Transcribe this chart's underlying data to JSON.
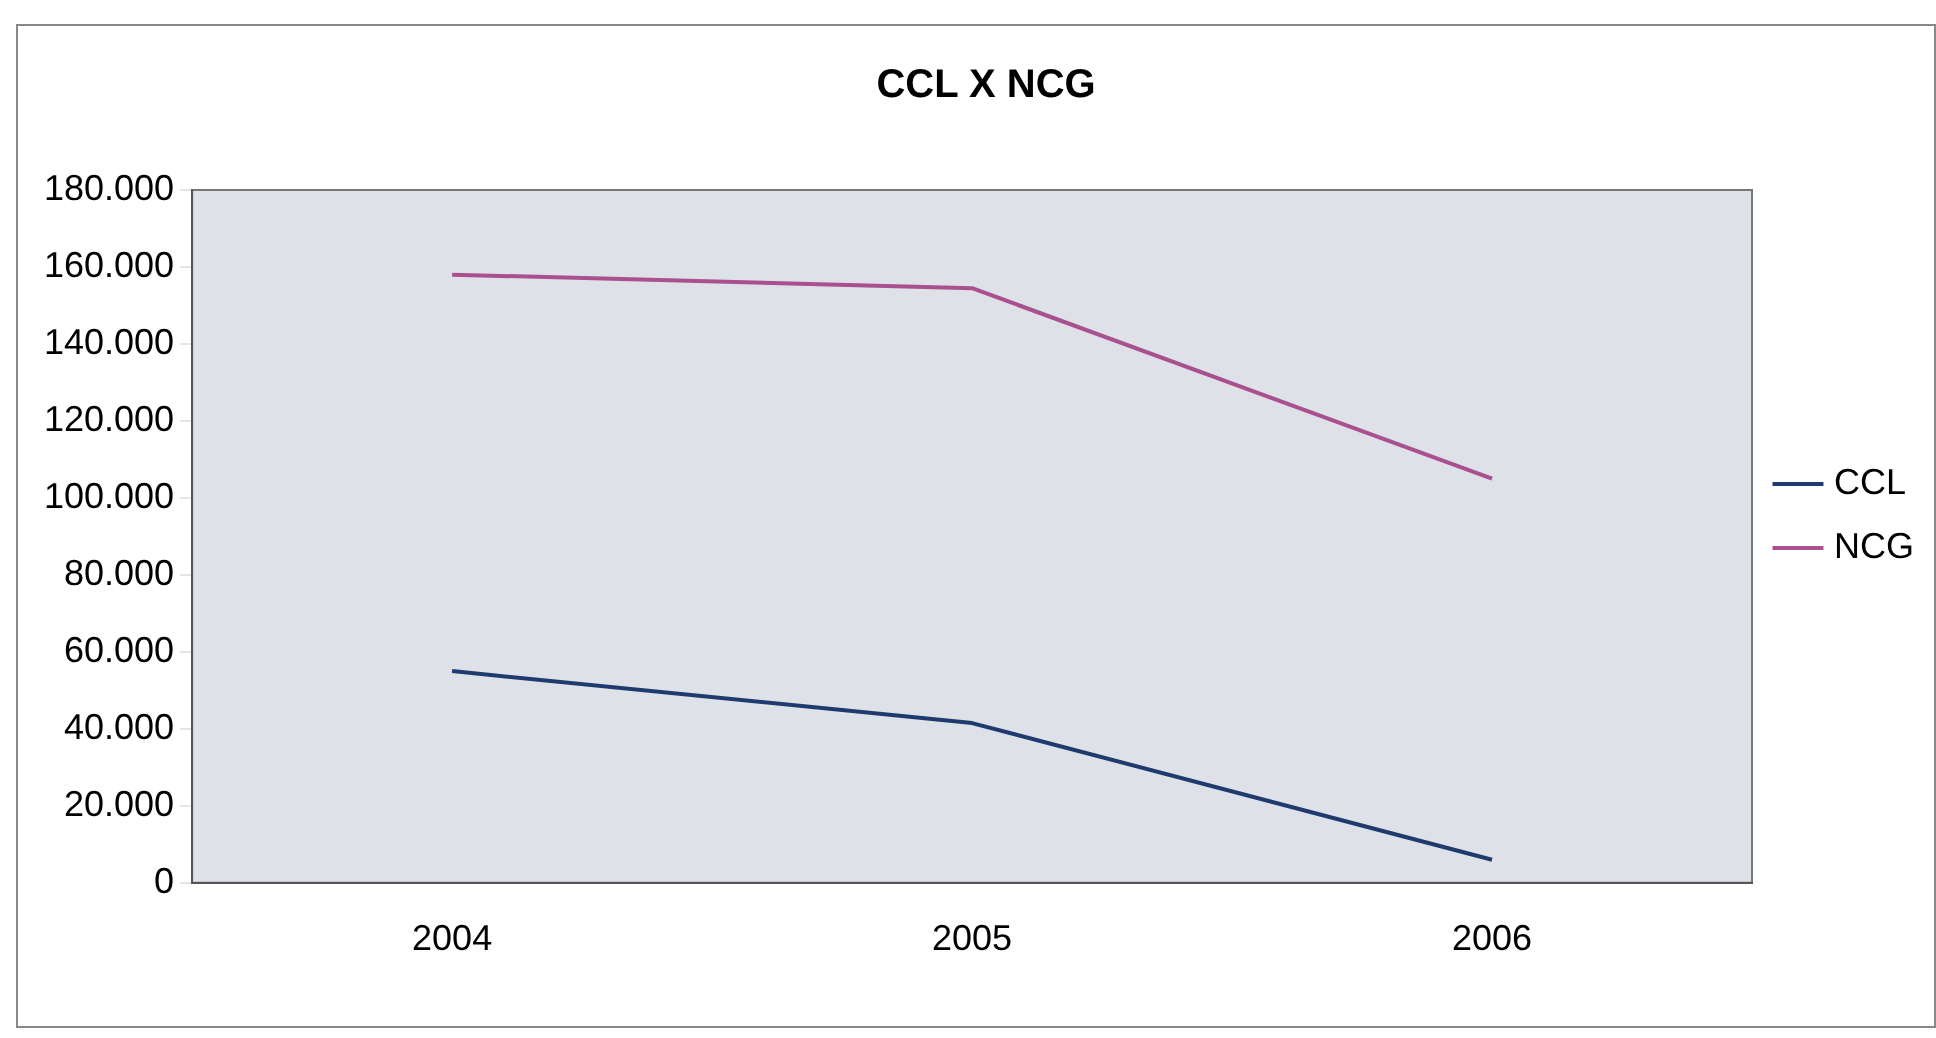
{
  "chart_data": {
    "type": "line",
    "title": "CCL X NCG",
    "categories": [
      "2004",
      "2005",
      "2006"
    ],
    "series": [
      {
        "name": "CCL",
        "color": "#1f3a6e",
        "values": [
          55000,
          41500,
          6000
        ]
      },
      {
        "name": "NCG",
        "color": "#a9508f",
        "values": [
          158000,
          154500,
          105000
        ]
      }
    ],
    "ylim": [
      0,
      180000
    ],
    "yticks": [
      {
        "value": 0,
        "label": "0"
      },
      {
        "value": 20000,
        "label": "20.000"
      },
      {
        "value": 40000,
        "label": "40.000"
      },
      {
        "value": 60000,
        "label": "60.000"
      },
      {
        "value": 80000,
        "label": "80.000"
      },
      {
        "value": 100000,
        "label": "100.000"
      },
      {
        "value": 120000,
        "label": "120.000"
      },
      {
        "value": 140000,
        "label": "140.000"
      },
      {
        "value": 160000,
        "label": "160.000"
      },
      {
        "value": 180000,
        "label": "180.000"
      }
    ],
    "grid": false,
    "legend": "right",
    "marker": "none",
    "line_style": "solid"
  }
}
